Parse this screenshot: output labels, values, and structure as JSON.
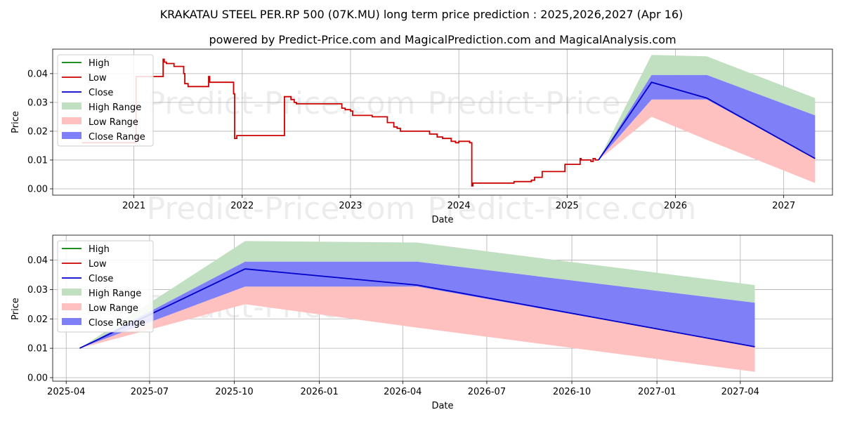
{
  "title": "KRAKATAU STEEL PER.RP 500 (07K.MU) long term price prediction : 2025,2026,2027 (Apr 16)",
  "subtitle": "powered by Predict-Price.com and MagicalPrediction.com and MagicalAnalysis.com",
  "watermark": "Predict-Price.com",
  "colors": {
    "high": "#008000",
    "low": "#cc0000",
    "close": "#0000cc",
    "high_range": "#c1e0c1",
    "low_range": "#ffc0c0",
    "close_range": "#7f7ff7"
  },
  "legend": [
    "High",
    "Low",
    "Close",
    "High Range",
    "Low Range",
    "Close Range"
  ],
  "chart_data": [
    {
      "type": "line",
      "name": "top",
      "xlabel": "Date",
      "ylabel": "Price",
      "xlim": [
        2020.25,
        2027.45
      ],
      "ylim": [
        -0.0022,
        0.0485
      ],
      "yticks": [
        0.0,
        0.01,
        0.02,
        0.03,
        0.04
      ],
      "ytick_labels": [
        "0.00",
        "0.01",
        "0.02",
        "0.03",
        "0.04"
      ],
      "xticks": [
        2021,
        2022,
        2023,
        2024,
        2025,
        2026,
        2027
      ],
      "xtick_labels": [
        "2021",
        "2022",
        "2023",
        "2024",
        "2025",
        "2026",
        "2027"
      ],
      "history": {
        "x": [
          2020.52,
          2020.52,
          2020.87,
          2020.87,
          2021.02,
          2021.02,
          2021.27,
          2021.27,
          2021.28,
          2021.28,
          2021.3,
          2021.3,
          2021.37,
          2021.37,
          2021.46,
          2021.46,
          2021.47,
          2021.47,
          2021.5,
          2021.5,
          2021.53,
          2021.53,
          2021.69,
          2021.69,
          2021.7,
          2021.7,
          2021.72,
          2021.72,
          2021.92,
          2021.92,
          2021.93,
          2021.93,
          2021.95,
          2021.95,
          2021.96,
          2021.96,
          2022.39,
          2022.39,
          2022.45,
          2022.45,
          2022.48,
          2022.48,
          2022.5,
          2022.5,
          2022.92,
          2022.92,
          2022.95,
          2022.95,
          2023.0,
          2023.0,
          2023.02,
          2023.02,
          2023.2,
          2023.2,
          2023.34,
          2023.34,
          2023.4,
          2023.4,
          2023.43,
          2023.43,
          2023.46,
          2023.46,
          2023.5,
          2023.5,
          2023.73,
          2023.73,
          2023.8,
          2023.8,
          2023.85,
          2023.85,
          2023.93,
          2023.93,
          2023.97,
          2023.97,
          2024.0,
          2024.0,
          2024.1,
          2024.1,
          2024.12,
          2024.12,
          2024.13,
          2024.13,
          2024.51,
          2024.51,
          2024.67,
          2024.67,
          2024.7,
          2024.7,
          2024.77,
          2024.77,
          2024.98,
          2024.98,
          2025.12,
          2025.12,
          2025.13,
          2025.13,
          2025.22,
          2025.22,
          2025.24,
          2025.24,
          2025.26,
          2025.26,
          2025.29
        ],
        "y": [
          0.016,
          0.016,
          0.016,
          0.016,
          0.016,
          0.039,
          0.039,
          0.045,
          0.045,
          0.044,
          0.044,
          0.0435,
          0.0435,
          0.0425,
          0.0425,
          0.04,
          0.04,
          0.0365,
          0.0365,
          0.0355,
          0.0355,
          0.0355,
          0.0355,
          0.039,
          0.039,
          0.037,
          0.037,
          0.037,
          0.037,
          0.033,
          0.033,
          0.0175,
          0.0175,
          0.0185,
          0.0185,
          0.0185,
          0.0185,
          0.032,
          0.032,
          0.031,
          0.031,
          0.03,
          0.03,
          0.0295,
          0.0295,
          0.028,
          0.028,
          0.0275,
          0.0275,
          0.027,
          0.027,
          0.0255,
          0.0255,
          0.025,
          0.025,
          0.023,
          0.023,
          0.0215,
          0.0215,
          0.021,
          0.021,
          0.02,
          0.02,
          0.02,
          0.02,
          0.019,
          0.019,
          0.018,
          0.018,
          0.0175,
          0.0175,
          0.0165,
          0.0165,
          0.016,
          0.016,
          0.0165,
          0.0165,
          0.016,
          0.016,
          0.001,
          0.001,
          0.002,
          0.002,
          0.0025,
          0.0025,
          0.003,
          0.003,
          0.004,
          0.004,
          0.006,
          0.006,
          0.0085,
          0.0085,
          0.0105,
          0.0105,
          0.01,
          0.01,
          0.0095,
          0.0095,
          0.0105,
          0.0105,
          0.01,
          0.01
        ]
      },
      "forecast_x": [
        2025.29,
        2025.78,
        2026.29,
        2027.29
      ],
      "close": [
        0.01,
        0.037,
        0.0315,
        0.0105
      ],
      "high_range": {
        "lower": [
          0.01,
          0.0395,
          0.0395,
          0.0255
        ],
        "upper": [
          0.01,
          0.0465,
          0.046,
          0.0315
        ]
      },
      "close_range": {
        "lower": [
          0.01,
          0.031,
          0.031,
          0.0105
        ],
        "upper": [
          0.01,
          0.0395,
          0.0395,
          0.0255
        ]
      },
      "low_range": {
        "lower": [
          0.01,
          0.025,
          0.017,
          0.002
        ],
        "upper": [
          0.01,
          0.031,
          0.031,
          0.0105
        ]
      }
    },
    {
      "type": "line",
      "name": "bottom",
      "xlabel": "Date",
      "ylabel": "Price",
      "xlim": [
        2025.21,
        2027.52
      ],
      "ylim": [
        -0.0012,
        0.0485
      ],
      "yticks": [
        0.0,
        0.01,
        0.02,
        0.03,
        0.04
      ],
      "ytick_labels": [
        "0.00",
        "0.01",
        "0.02",
        "0.03",
        "0.04"
      ],
      "xticks": [
        2025.25,
        2025.497,
        2025.748,
        2026.0,
        2026.247,
        2026.496,
        2026.748,
        2027.0,
        2027.247
      ],
      "xtick_labels": [
        "2025-04",
        "2025-07",
        "2025-10",
        "2026-01",
        "2026-04",
        "2026-07",
        "2026-10",
        "2027-01",
        "2027-04"
      ],
      "forecast_x": [
        2025.29,
        2025.78,
        2026.29,
        2027.29
      ],
      "close": [
        0.01,
        0.037,
        0.0315,
        0.0105
      ],
      "high_range": {
        "lower": [
          0.01,
          0.0395,
          0.0395,
          0.0255
        ],
        "upper": [
          0.01,
          0.0465,
          0.046,
          0.0315
        ]
      },
      "close_range": {
        "lower": [
          0.01,
          0.031,
          0.031,
          0.0105
        ],
        "upper": [
          0.01,
          0.0395,
          0.0395,
          0.0255
        ]
      },
      "low_range": {
        "lower": [
          0.01,
          0.025,
          0.017,
          0.002
        ],
        "upper": [
          0.01,
          0.031,
          0.031,
          0.0105
        ]
      }
    }
  ]
}
